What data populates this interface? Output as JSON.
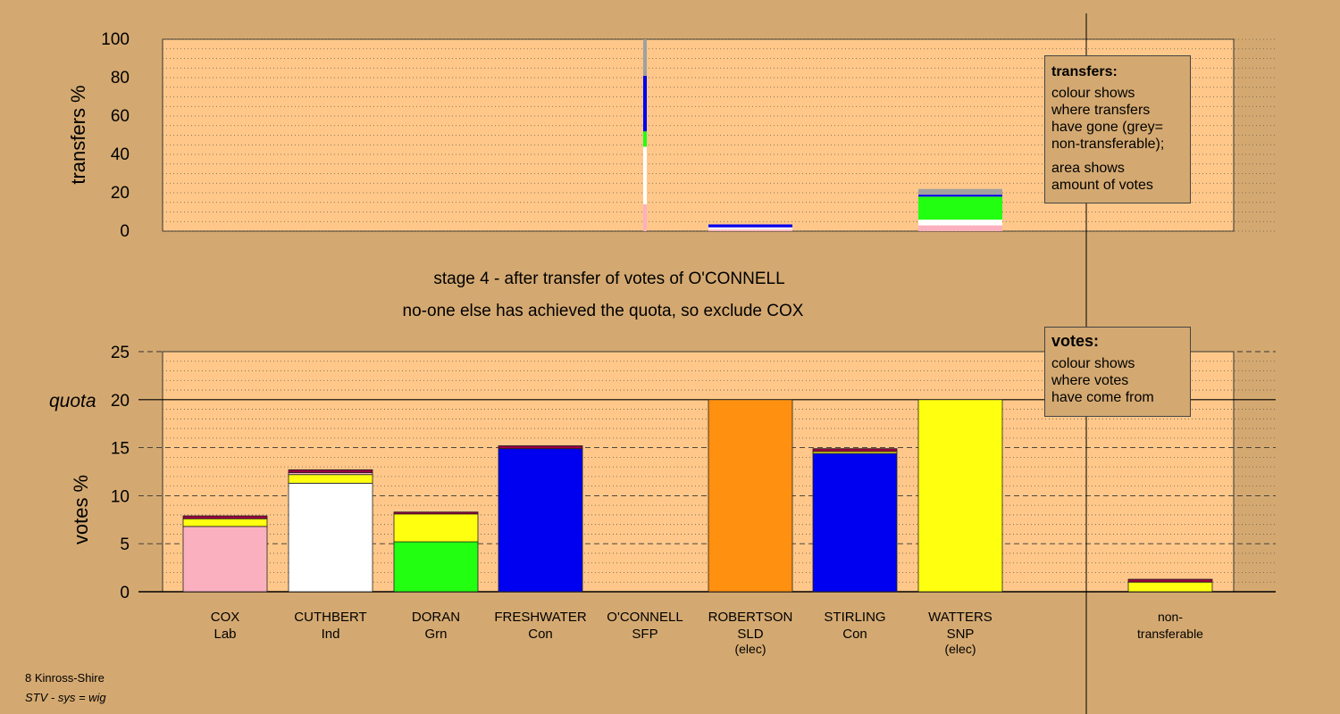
{
  "stage_title": "stage 4 - after transfer of votes of O'CONNELL",
  "stage_subtitle": "no-one else has achieved the quota, so exclude COX",
  "colors": {
    "background": "#D4A971",
    "plot_bg": "#FFC88A",
    "Lab": "#FBB0C0",
    "Ind": "#FFFFFF",
    "Grn": "#22FF11",
    "Con": "#0000F0",
    "SFP": "#9A0040",
    "SLD": "#FF9010",
    "SNP": "#FFFF10",
    "nontransferable": "#A0A0A0"
  },
  "legend_transfers": {
    "title": "transfers:",
    "line1": "colour shows",
    "line2": "where transfers",
    "line3": "have gone (grey=",
    "line4": "non-transferable);",
    "line5": "area shows",
    "line6": "amount of votes"
  },
  "legend_votes": {
    "title": "votes:",
    "line1": "colour shows",
    "line2": "where votes",
    "line3": "have come from"
  },
  "footer": {
    "line1": "8 Kinross-Shire",
    "line2": "STV - sys = wig"
  },
  "chart_data": [
    {
      "type": "bar",
      "name": "transfers",
      "ylabel": "transfers %",
      "ylim": [
        0,
        100
      ],
      "yticks": [
        0,
        20,
        40,
        60,
        80,
        100
      ],
      "bars": [
        {
          "candidate": "O'CONNELL",
          "narrow": true,
          "segments": [
            {
              "party": "Lab",
              "value": 14
            },
            {
              "party": "Ind",
              "value": 30
            },
            {
              "party": "Grn",
              "value": 8
            },
            {
              "party": "Con",
              "value": 29
            },
            {
              "party": "nontransferable",
              "value": 19
            }
          ]
        },
        {
          "candidate": "ROBERTSON",
          "narrow": false,
          "segments": [
            {
              "party": "Lab",
              "value": 0.8
            },
            {
              "party": "Ind",
              "value": 1.2
            },
            {
              "party": "Con",
              "value": 1.5
            }
          ]
        },
        {
          "candidate": "WATTERS",
          "narrow": false,
          "segments": [
            {
              "party": "Lab",
              "value": 3
            },
            {
              "party": "Ind",
              "value": 3
            },
            {
              "party": "Grn",
              "value": 12
            },
            {
              "party": "Con",
              "value": 1
            },
            {
              "party": "nontransferable",
              "value": 3
            }
          ]
        }
      ]
    },
    {
      "type": "bar",
      "name": "votes",
      "ylabel": "votes %",
      "ylim": [
        0,
        25
      ],
      "yticks": [
        0,
        5,
        10,
        15,
        20,
        25
      ],
      "quota": 20,
      "quota_label": "quota",
      "bars": [
        {
          "candidate": "COX",
          "party": "Lab",
          "segments": [
            {
              "party": "Lab",
              "value": 6.8
            },
            {
              "party": "SNP",
              "value": 0.8
            },
            {
              "party": "SFP",
              "value": 0.3
            }
          ]
        },
        {
          "candidate": "CUTHBERT",
          "party": "Ind",
          "segments": [
            {
              "party": "Ind",
              "value": 11.3
            },
            {
              "party": "SNP",
              "value": 0.9
            },
            {
              "party": "Lab",
              "value": 0.2
            },
            {
              "party": "SFP",
              "value": 0.3
            }
          ]
        },
        {
          "candidate": "DORAN",
          "party": "Grn",
          "segments": [
            {
              "party": "Grn",
              "value": 5.2
            },
            {
              "party": "SNP",
              "value": 2.9
            },
            {
              "party": "SFP",
              "value": 0.2
            }
          ]
        },
        {
          "candidate": "FRESHWATER",
          "party": "Con",
          "segments": [
            {
              "party": "Con",
              "value": 14.9
            },
            {
              "party": "SFP",
              "value": 0.3
            }
          ]
        },
        {
          "candidate": "O'CONNELL",
          "party": "SFP",
          "segments": []
        },
        {
          "candidate": "ROBERTSON",
          "party": "SLD",
          "note": "(elec)",
          "segments": [
            {
              "party": "SLD",
              "value": 20
            }
          ]
        },
        {
          "candidate": "STIRLING",
          "party": "Con",
          "segments": [
            {
              "party": "Con",
              "value": 14.4
            },
            {
              "party": "SNP",
              "value": 0.2
            },
            {
              "party": "SFP",
              "value": 0.3
            }
          ]
        },
        {
          "candidate": "WATTERS",
          "party": "SNP",
          "note": "(elec)",
          "segments": [
            {
              "party": "SNP",
              "value": 20
            }
          ]
        }
      ],
      "nontransferable": {
        "label1": "non-",
        "label2": "transferable",
        "segments": [
          {
            "party": "SNP",
            "value": 1.0
          },
          {
            "party": "SFP",
            "value": 0.3
          }
        ]
      }
    }
  ]
}
